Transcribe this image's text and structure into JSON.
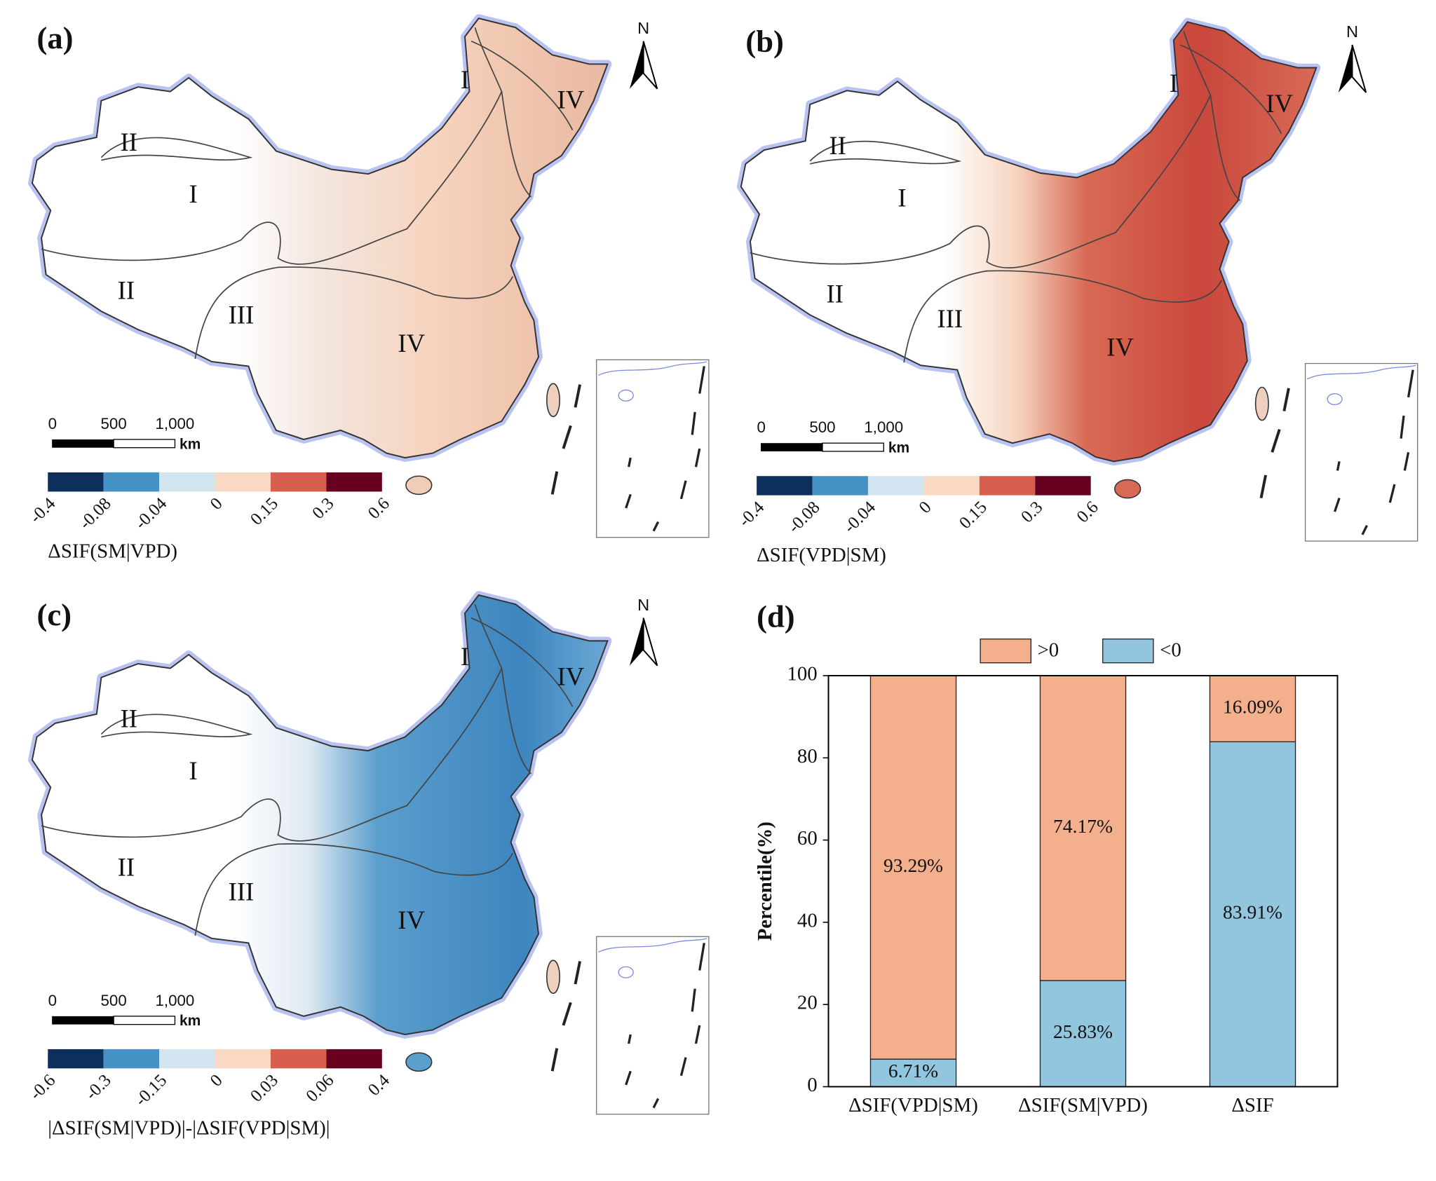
{
  "maps": [
    {
      "label": "(a)",
      "north": "N",
      "regions": [
        "II",
        "I",
        "II",
        "III",
        "IV",
        "I",
        "IV"
      ],
      "scale_bar": {
        "ticks": [
          0,
          500,
          {
            "value": 1000,
            "label": "1,000"
          }
        ],
        "unit": "km"
      },
      "colorbar": {
        "ticks": [
          -0.4,
          -0.08,
          -0.04,
          0,
          0.15,
          0.3,
          0.6
        ],
        "colors": [
          "#0d2f5c",
          "#4691c6",
          "#d2e5f0",
          "#f9d9c4",
          "#d6604d",
          "#67001f"
        ],
        "title": "ΔSIF(SM|VPD)"
      }
    },
    {
      "label": "(b)",
      "north": "N",
      "regions": [
        "II",
        "I",
        "II",
        "III",
        "IV",
        "I",
        "IV"
      ],
      "scale_bar": {
        "ticks": [
          0,
          500,
          {
            "value": 1000,
            "label": "1,000"
          }
        ],
        "unit": "km"
      },
      "colorbar": {
        "ticks": [
          -0.4,
          -0.08,
          -0.04,
          0,
          0.15,
          0.3,
          0.6
        ],
        "colors": [
          "#0d2f5c",
          "#4691c6",
          "#d2e5f0",
          "#f9d9c4",
          "#d6604d",
          "#67001f"
        ],
        "title": "ΔSIF(VPD|SM)"
      }
    },
    {
      "label": "(c)",
      "north": "N",
      "regions": [
        "II",
        "I",
        "II",
        "III",
        "IV",
        "I",
        "IV"
      ],
      "scale_bar": {
        "ticks": [
          0,
          500,
          {
            "value": 1000,
            "label": "1,000"
          }
        ],
        "unit": "km"
      },
      "colorbar": {
        "ticks": [
          -0.6,
          -0.3,
          -0.15,
          0,
          0.03,
          0.06,
          0.4
        ],
        "colors": [
          "#0d2f5c",
          "#4691c6",
          "#d2e5f0",
          "#f9d9c4",
          "#d6604d",
          "#67001f"
        ],
        "title": "|ΔSIF(SM|VPD)|-|ΔSIF(VPD|SM)|"
      }
    }
  ],
  "chart_data": {
    "type": "stacked_bar",
    "title": "(d)",
    "y_label": "Percentile(%)",
    "categories": [
      "ΔSIF(VPD|SM)",
      "ΔSIF(SM|VPD)",
      "ΔSIF"
    ],
    "series": [
      {
        "name": "<0",
        "color": "#92c5de",
        "values": [
          6.71,
          25.83,
          83.91
        ],
        "value_labels": [
          "6.71%",
          "25.83%",
          "83.91%"
        ]
      },
      {
        "name": ">0",
        "color": "#f4b08c",
        "values": [
          93.29,
          74.17,
          16.09
        ],
        "value_labels": [
          "93.29%",
          "74.17%",
          "16.09%"
        ]
      }
    ],
    "ylim": [
      0,
      100
    ],
    "yticks": [
      0,
      20,
      40,
      60,
      80,
      100
    ]
  }
}
